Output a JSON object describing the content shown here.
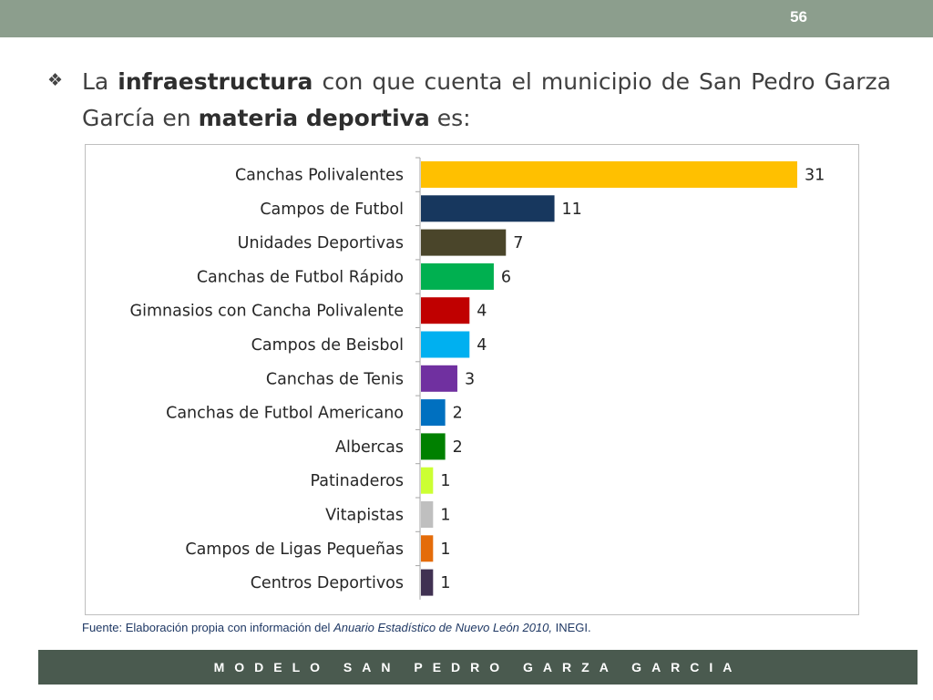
{
  "header": {
    "page_number": "56"
  },
  "bullet": {
    "icon": "four-diamond-icon",
    "part1": "La ",
    "bold1": "infraestructura",
    "part2": " con que cuenta el municipio de San Pedro Garza García en ",
    "bold2": "materia deportiva",
    "part3": " es:"
  },
  "chart_data": {
    "type": "bar",
    "orientation": "horizontal",
    "categories": [
      "Canchas Polivalentes",
      "Campos de Futbol",
      "Unidades Deportivas",
      "Canchas de Futbol Rápido",
      "Gimnasios con Cancha Polivalente",
      "Campos de Beisbol",
      "Canchas de Tenis",
      "Canchas de Futbol Americano",
      "Albercas",
      "Patinaderos",
      "Vitapistas",
      "Campos de Ligas Pequeñas",
      "Centros Deportivos"
    ],
    "values": [
      31,
      11,
      7,
      6,
      4,
      4,
      3,
      2,
      2,
      1,
      1,
      1,
      1
    ],
    "colors": [
      "#ffc000",
      "#17375e",
      "#4a452a",
      "#00b050",
      "#c00000",
      "#00b0f0",
      "#7030a0",
      "#0070c0",
      "#008000",
      "#ccff33",
      "#bfbfbf",
      "#e46c0a",
      "#403152"
    ],
    "data_labels": [
      "31",
      "11",
      "7",
      "6",
      "4",
      "4",
      "3",
      "2",
      "2",
      "1",
      "1",
      "1",
      "1"
    ],
    "xlim": [
      0,
      31
    ],
    "grid": false,
    "legend": "none"
  },
  "source": {
    "prefix": "Fuente: Elaboración propia con información del ",
    "italic": "Anuario Estadístico de Nuevo León 2010,",
    "suffix": " INEGI."
  },
  "footer": {
    "text": "MODELO SAN PEDRO GARZA GARCIA"
  }
}
